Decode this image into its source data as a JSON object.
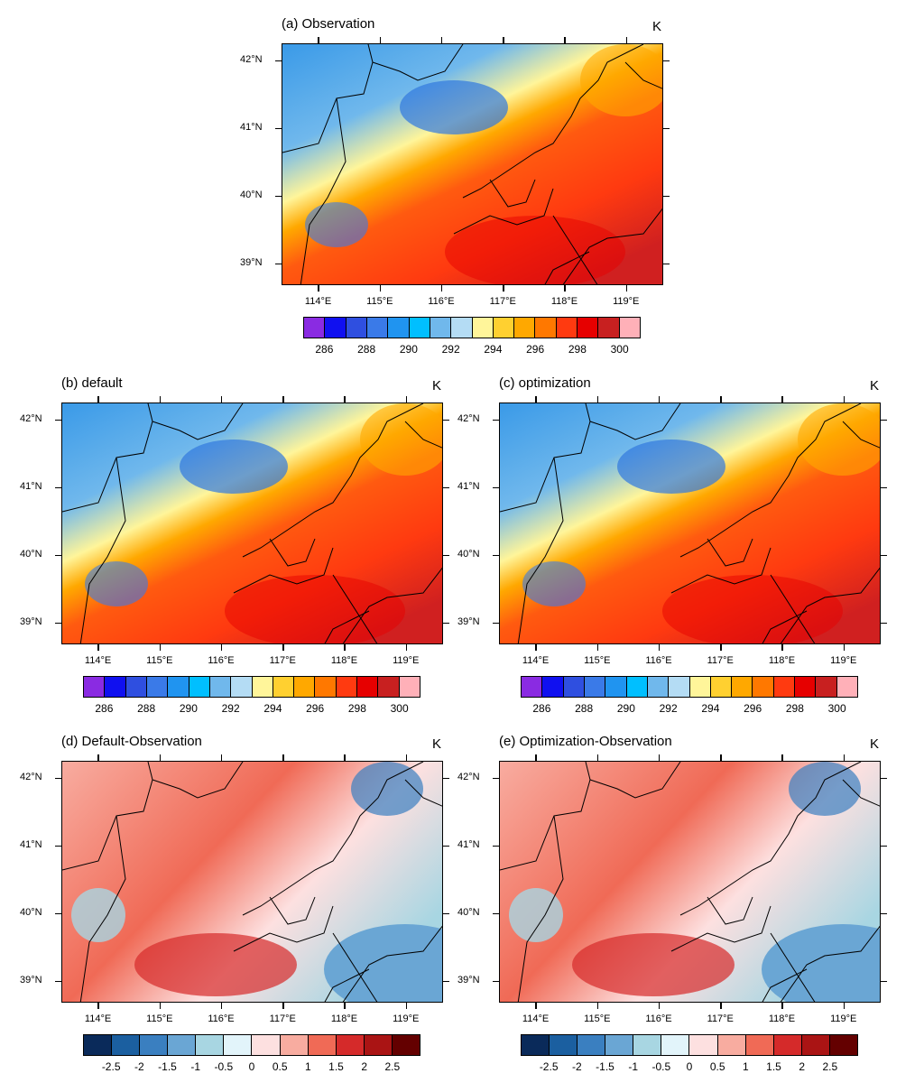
{
  "panels": [
    {
      "id": "a",
      "title": "(a) Observation",
      "unit": "K",
      "kind": "temp"
    },
    {
      "id": "b",
      "title": "(b) default",
      "unit": "K",
      "kind": "temp"
    },
    {
      "id": "c",
      "title": "(c) optimization",
      "unit": "K",
      "kind": "temp"
    },
    {
      "id": "d",
      "title": "(d) Default-Observation",
      "unit": "K",
      "kind": "diff"
    },
    {
      "id": "e",
      "title": "(e) Optimization-Observation",
      "unit": "K",
      "kind": "diff"
    }
  ],
  "axes": {
    "lat_ticks": [
      {
        "v": 39,
        "label": "39°N"
      },
      {
        "v": 40,
        "label": "40°N"
      },
      {
        "v": 41,
        "label": "41°N"
      },
      {
        "v": 42,
        "label": "42°N"
      }
    ],
    "lon_ticks": [
      {
        "v": 114,
        "label": "114°E"
      },
      {
        "v": 115,
        "label": "115°E"
      },
      {
        "v": 116,
        "label": "116°E"
      },
      {
        "v": 117,
        "label": "117°E"
      },
      {
        "v": 118,
        "label": "118°E"
      },
      {
        "v": 119,
        "label": "119°E"
      }
    ],
    "lon_range": [
      113.4,
      119.6
    ],
    "lat_range": [
      38.68,
      42.26
    ]
  },
  "colorbars": {
    "temp": {
      "colors": [
        "#8a2be2",
        "#1010f0",
        "#2f4fe0",
        "#3a7ae8",
        "#2094f0",
        "#00bfff",
        "#70b8ec",
        "#b4dcf4",
        "#fff59a",
        "#ffd030",
        "#ffa800",
        "#ff7800",
        "#ff3a10",
        "#e60000",
        "#c82020",
        "#ffb0b8"
      ],
      "labels": [
        "286",
        "288",
        "290",
        "292",
        "294",
        "296",
        "298",
        "300"
      ],
      "label_boundaries": [
        1,
        3,
        5,
        7,
        9,
        11,
        13,
        15
      ]
    },
    "diff": {
      "colors": [
        "#0a2a5a",
        "#1b5fa0",
        "#3a7fc0",
        "#6aa6d4",
        "#a8d6e2",
        "#e2f4fa",
        "#fde0e0",
        "#f8aca0",
        "#f06a56",
        "#d52a2a",
        "#aa1414",
        "#640000"
      ],
      "labels": [
        "-2.5",
        "-2",
        "-1.5",
        "-1",
        "-0.5",
        "0",
        "0.5",
        "1",
        "1.5",
        "2",
        "2.5"
      ],
      "label_boundaries": [
        1,
        2,
        3,
        4,
        5,
        6,
        7,
        8,
        9,
        10,
        11
      ]
    }
  }
}
